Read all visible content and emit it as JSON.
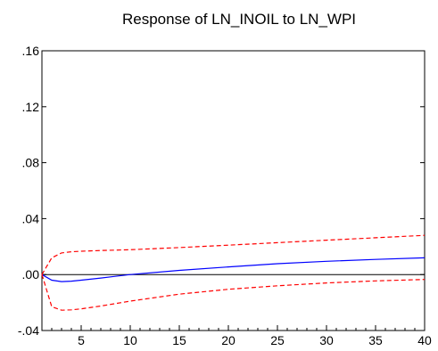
{
  "chart_data": {
    "type": "line",
    "title": "Response of LN_INOIL to LN_WPI",
    "xlabel": "",
    "ylabel": "",
    "xlim": [
      1,
      40
    ],
    "ylim": [
      -0.04,
      0.16
    ],
    "x_ticks": [
      5,
      10,
      15,
      20,
      25,
      30,
      35,
      40
    ],
    "x_tick_labels": [
      "5",
      "10",
      "15",
      "20",
      "25",
      "30",
      "35",
      "40"
    ],
    "y_ticks": [
      -0.04,
      0.0,
      0.04,
      0.08,
      0.12,
      0.16
    ],
    "y_tick_labels": [
      "-.04",
      ".00",
      ".04",
      ".08",
      ".12",
      ".16"
    ],
    "grid": false,
    "zero_line": true,
    "x": [
      1,
      2,
      3,
      4,
      5,
      7,
      10,
      15,
      20,
      25,
      30,
      35,
      40
    ],
    "series": [
      {
        "line_style": "solid",
        "color": "#0000ff",
        "values": [
          0.0,
          -0.004,
          -0.005,
          -0.0047,
          -0.004,
          -0.0025,
          0.0,
          0.003,
          0.0055,
          0.0078,
          0.0095,
          0.0108,
          0.012
        ]
      },
      {
        "line_style": "dashed",
        "color": "#ff0000",
        "values": [
          0.0,
          0.012,
          0.0155,
          0.0163,
          0.0167,
          0.0172,
          0.0178,
          0.0193,
          0.021,
          0.0228,
          0.0246,
          0.0263,
          0.028
        ]
      },
      {
        "line_style": "dashed",
        "color": "#ff0000",
        "values": [
          0.0,
          -0.023,
          -0.0255,
          -0.0252,
          -0.0245,
          -0.0225,
          -0.019,
          -0.014,
          -0.0105,
          -0.008,
          -0.006,
          -0.0045,
          -0.0035
        ]
      }
    ]
  }
}
